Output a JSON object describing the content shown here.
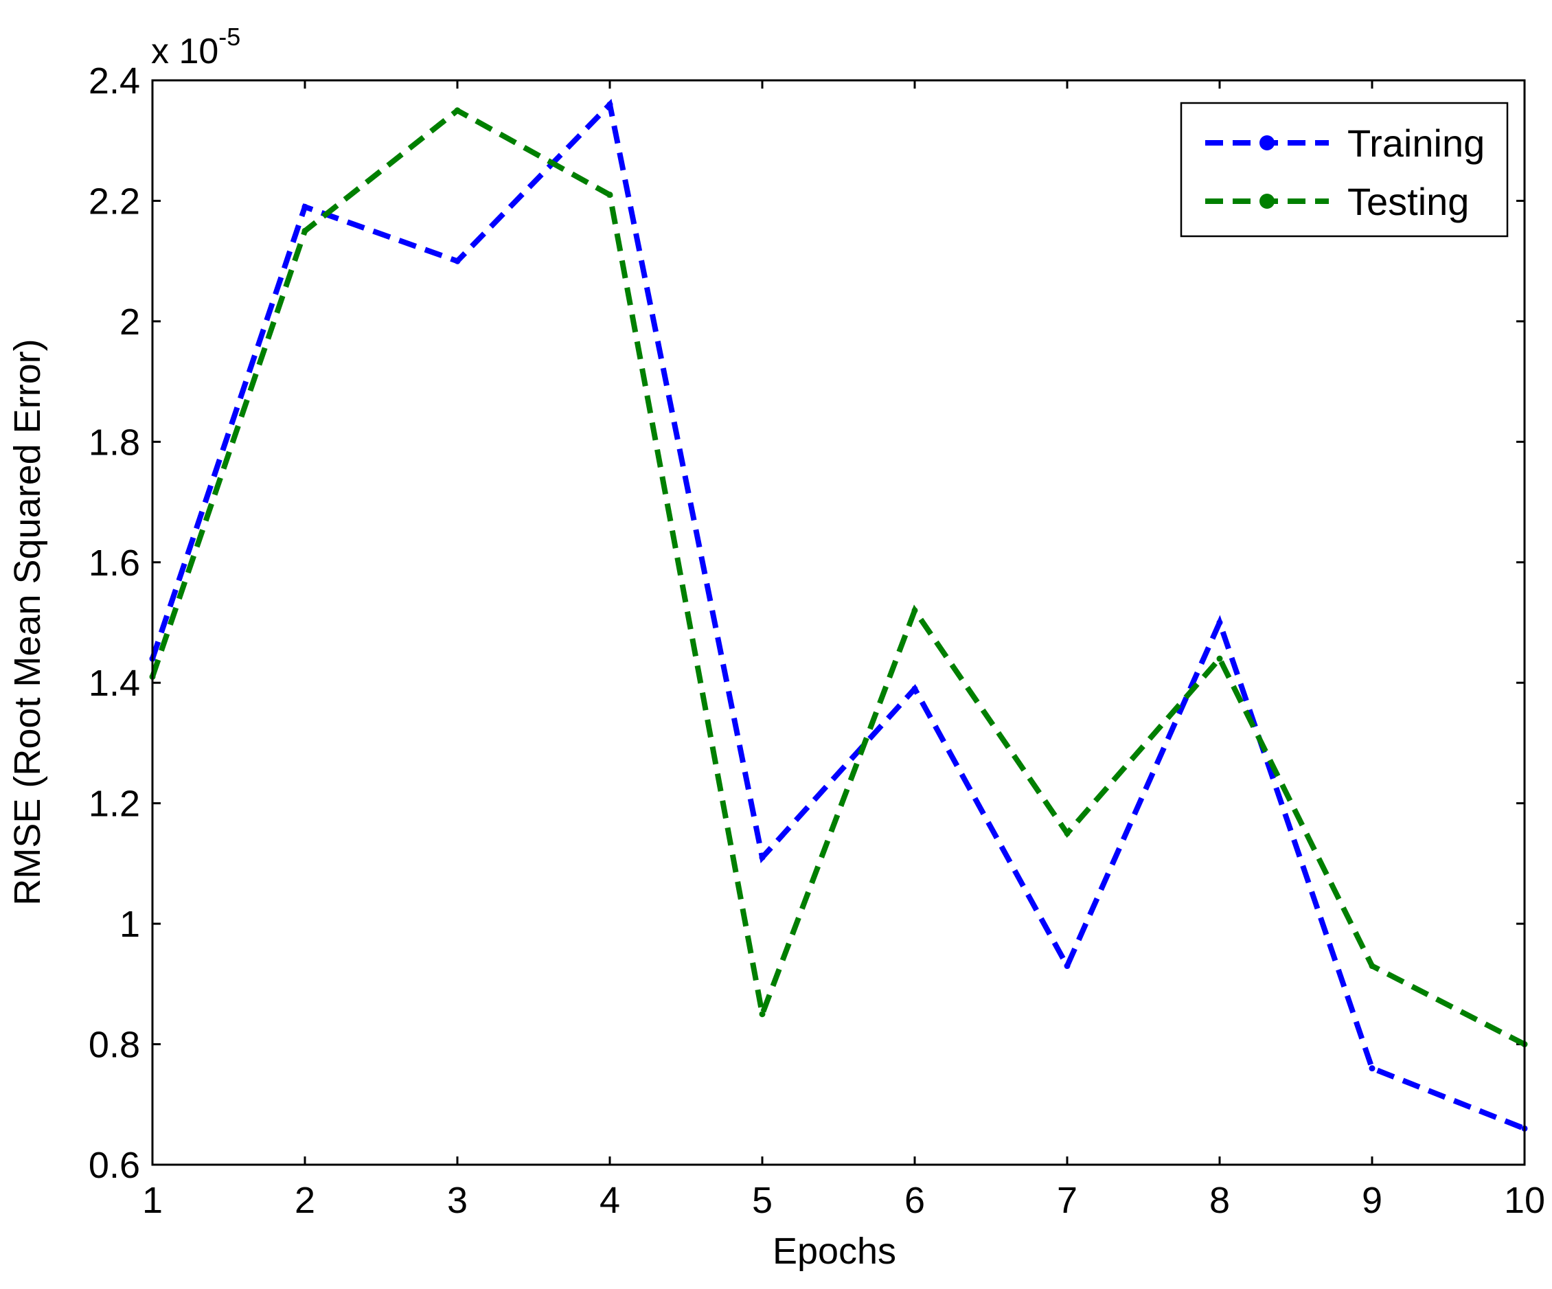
{
  "chart_data": {
    "type": "line",
    "title": "",
    "xlabel": "Epochs",
    "ylabel": "RMSE (Root Mean Squared Error)",
    "y_multiplier": {
      "prefix": "x 10",
      "exponent": "-5"
    },
    "x": [
      1,
      2,
      3,
      4,
      5,
      6,
      7,
      8,
      9,
      10
    ],
    "xlim": [
      1,
      10
    ],
    "ylim": [
      0.6,
      2.4
    ],
    "x_ticks": [
      "1",
      "2",
      "3",
      "4",
      "5",
      "6",
      "7",
      "8",
      "9",
      "10"
    ],
    "y_ticks": [
      "0.6",
      "0.8",
      "1",
      "1.2",
      "1.4",
      "1.6",
      "1.8",
      "2",
      "2.2",
      "2.4"
    ],
    "grid": false,
    "legend_position": "top-right",
    "series": [
      {
        "name": "Training",
        "color": "#0000ff",
        "line_style": "dashed",
        "marker": "dot",
        "values": [
          1.44,
          2.19,
          2.1,
          2.36,
          1.11,
          1.39,
          0.93,
          1.5,
          0.76,
          0.66
        ]
      },
      {
        "name": "Testing",
        "color": "#007f00",
        "line_style": "dashed",
        "marker": "dot",
        "values": [
          1.41,
          2.15,
          2.35,
          2.21,
          0.85,
          1.52,
          1.15,
          1.44,
          0.93,
          0.8
        ]
      }
    ]
  }
}
